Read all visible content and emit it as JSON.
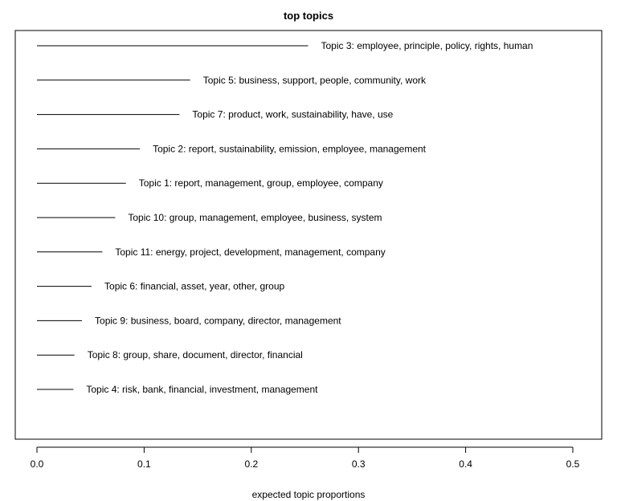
{
  "chart_data": {
    "type": "bar",
    "title": "top topics",
    "xlabel": "expected topic proportions",
    "ylabel": "",
    "xlim": [
      0,
      0.5
    ],
    "xticks": [
      "0.0",
      "0.1",
      "0.2",
      "0.3",
      "0.4",
      "0.5"
    ],
    "grid": false,
    "legend": "none",
    "orientation": "horizontal",
    "categories": [
      "Topic 3: employee, principle, policy, rights, human",
      "Topic 5: business, support, people, community, work",
      "Topic 7: product, work, sustainability, have, use",
      "Topic 2: report, sustainability, emission, employee, management",
      "Topic 1: report, management, group, employee, company",
      "Topic 10: group, management, employee, business, system",
      "Topic 11: energy, project, development, management, company",
      "Topic 6: financial, asset, year, other, group",
      "Topic 9: business, board, company, director, management",
      "Topic 8: group, share, document, director, financial",
      "Topic 4: risk, bank, financial, investment, management"
    ],
    "values": [
      0.253,
      0.143,
      0.133,
      0.096,
      0.083,
      0.073,
      0.061,
      0.051,
      0.042,
      0.035,
      0.034
    ]
  },
  "colors": {
    "line": "#000000",
    "background": "#ffffff"
  }
}
